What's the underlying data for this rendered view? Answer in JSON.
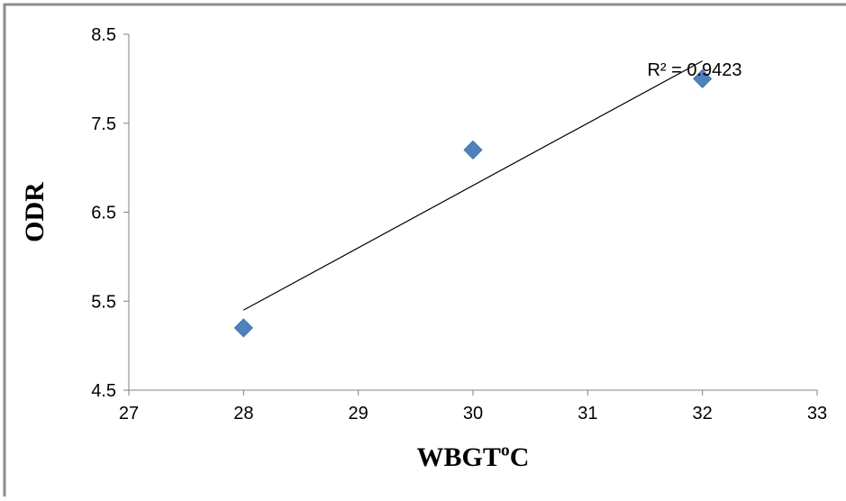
{
  "chart_data": {
    "type": "scatter",
    "title": "",
    "xlabel": "WBGTºC",
    "ylabel": "ODR",
    "xlim": [
      27,
      33
    ],
    "ylim": [
      4.5,
      8.5
    ],
    "x_ticks": [
      27,
      28,
      29,
      30,
      31,
      32,
      33
    ],
    "y_ticks": [
      4.5,
      5.5,
      6.5,
      7.5,
      8.5
    ],
    "x_tick_labels": [
      "27",
      "28",
      "29",
      "30",
      "31",
      "32",
      "33"
    ],
    "y_tick_labels": [
      "4.5",
      "5.5",
      "6.5",
      "7.5",
      "8.5"
    ],
    "grid": false,
    "legend": "none",
    "series": [
      {
        "x": [
          28,
          30,
          32
        ],
        "y": [
          5.2,
          7.2,
          8.0
        ],
        "marker": "diamond",
        "color": "#4f81bd"
      }
    ],
    "trendline": {
      "type": "linear",
      "x": [
        28,
        32
      ],
      "y": [
        5.4,
        8.2
      ],
      "color": "#000000"
    },
    "annotation": {
      "text": "R² = 0.9423"
    }
  }
}
